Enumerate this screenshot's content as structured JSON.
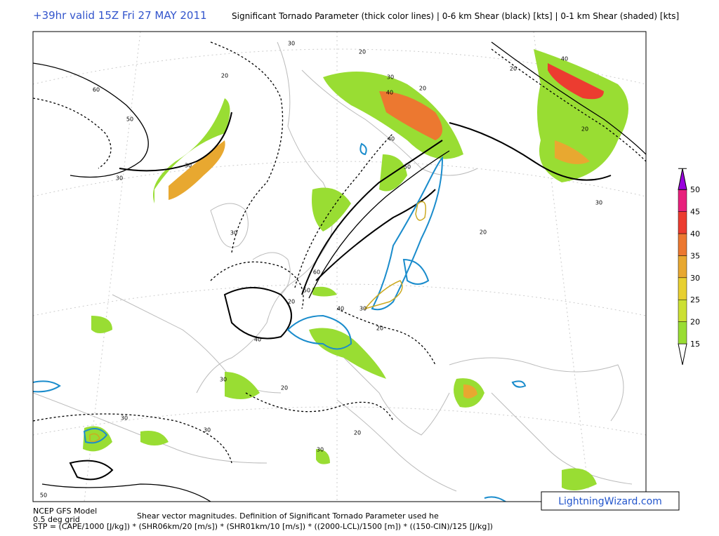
{
  "header": {
    "valid": "+39hr valid 15Z Fri 27 MAY 2011",
    "title": "Significant Tornado Parameter (thick color lines) | 0-6 km Shear (black) [kts] | 0-1 km Shear (shaded) [kts]"
  },
  "colorbar": {
    "levels": [
      {
        "label": "15",
        "color": "#99dd33"
      },
      {
        "label": "20",
        "color": "#cce033"
      },
      {
        "label": "25",
        "color": "#e8d030"
      },
      {
        "label": "30",
        "color": "#e8a830"
      },
      {
        "label": "35",
        "color": "#ec7830"
      },
      {
        "label": "40",
        "color": "#ec3c30"
      },
      {
        "label": "45",
        "color": "#e8207c"
      },
      {
        "label": "50",
        "color": "#9900dd"
      }
    ]
  },
  "map": {
    "contour_labels": [
      "30",
      "20",
      "60",
      "50",
      "20",
      "30",
      "40",
      "20",
      "20",
      "40",
      "30",
      "30",
      "40",
      "50",
      "30",
      "30",
      "20",
      "60",
      "50",
      "20",
      "40",
      "30",
      "20",
      "40",
      "30",
      "20",
      "30",
      "30",
      "20",
      "30",
      "50",
      "20"
    ]
  },
  "footer": {
    "model": "NCEP GFS Model",
    "grid": "0.5 deg grid",
    "description": "Shear vector magnitudes. Definition of Significant Tornado Parameter used he",
    "formula": "STP = (CAPE/1000 [J/kg]) * (SHR06km/20 [m/s]) * (SHR01km/10 [m/s]) * ((2000-LCL)/1500 [m]) * ((150-CIN)/125 [J/kg])",
    "credit": "LightningWizard.com"
  }
}
